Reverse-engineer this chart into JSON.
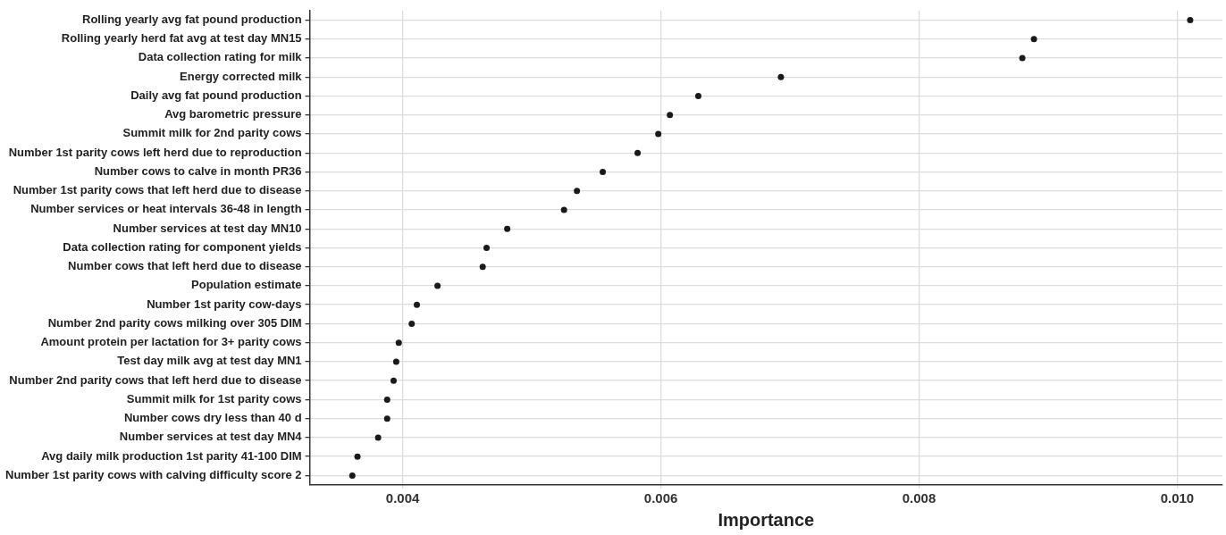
{
  "chart_data": {
    "type": "scatter",
    "orientation": "horizontal",
    "xlabel": "Importance",
    "categories": [
      "Rolling yearly avg fat pound production",
      "Rolling yearly herd fat avg at test day MN15",
      "Data collection rating for milk",
      "Energy corrected milk",
      "Daily avg fat pound production",
      "Avg barometric pressure",
      "Summit milk for 2nd parity cows",
      "Number 1st parity cows left herd due to reproduction",
      "Number cows to calve in month PR36",
      "Number 1st parity cows that left herd due to disease",
      "Number services or heat intervals 36-48 in length",
      "Number services at test day MN10",
      "Data collection rating for component yields",
      "Number cows that left herd due to disease",
      "Population estimate",
      "Number 1st parity cow-days",
      "Number 2nd parity cows milking over 305 DIM",
      "Amount protein per lactation for 3+ parity cows",
      "Test day milk avg at test day MN1",
      "Number 2nd parity cows that left herd due to disease",
      "Summit milk for 1st parity cows",
      "Number cows dry less than 40 d",
      "Number services at test day MN4",
      "Avg daily milk production 1st parity 41-100 DIM",
      "Number 1st parity cows with calving difficulty score 2"
    ],
    "values": [
      0.0101,
      0.00889,
      0.0088,
      0.00693,
      0.00629,
      0.00607,
      0.00598,
      0.00582,
      0.00555,
      0.00535,
      0.00525,
      0.00481,
      0.00465,
      0.00462,
      0.00427,
      0.00411,
      0.00407,
      0.00397,
      0.00395,
      0.00393,
      0.00388,
      0.00388,
      0.00381,
      0.00365,
      0.00361
    ],
    "color": "#1a1a1a",
    "marker": "circle",
    "grid": true,
    "legend": false,
    "xlim": [
      0.00328,
      0.01035
    ],
    "xticks": [
      0.004,
      0.006,
      0.008,
      {
        "value": 0.01,
        "label": "0.010"
      }
    ]
  }
}
